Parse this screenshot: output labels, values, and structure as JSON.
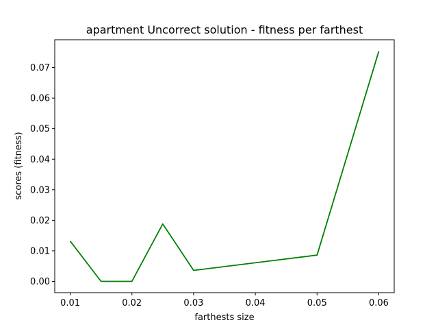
{
  "chart_data": {
    "type": "line",
    "title": "apartment Uncorrect solution - fitness per farthest",
    "xlabel": "farthests size",
    "ylabel": "scores (fitness)",
    "xlim": [
      0.0075,
      0.0625
    ],
    "ylim": [
      -0.0037,
      0.0791
    ],
    "xticks": [
      "0.01",
      "0.02",
      "0.03",
      "0.04",
      "0.05",
      "0.06"
    ],
    "yticks": [
      "0.00",
      "0.01",
      "0.02",
      "0.03",
      "0.04",
      "0.05",
      "0.06",
      "0.07"
    ],
    "grid": false,
    "series": [
      {
        "color": "#008000",
        "x": [
          0.01,
          0.015,
          0.02,
          0.025,
          0.03,
          0.05,
          0.06
        ],
        "y": [
          0.0132,
          0.0,
          0.0,
          0.0188,
          0.0036,
          0.0086,
          0.0753
        ]
      }
    ]
  }
}
